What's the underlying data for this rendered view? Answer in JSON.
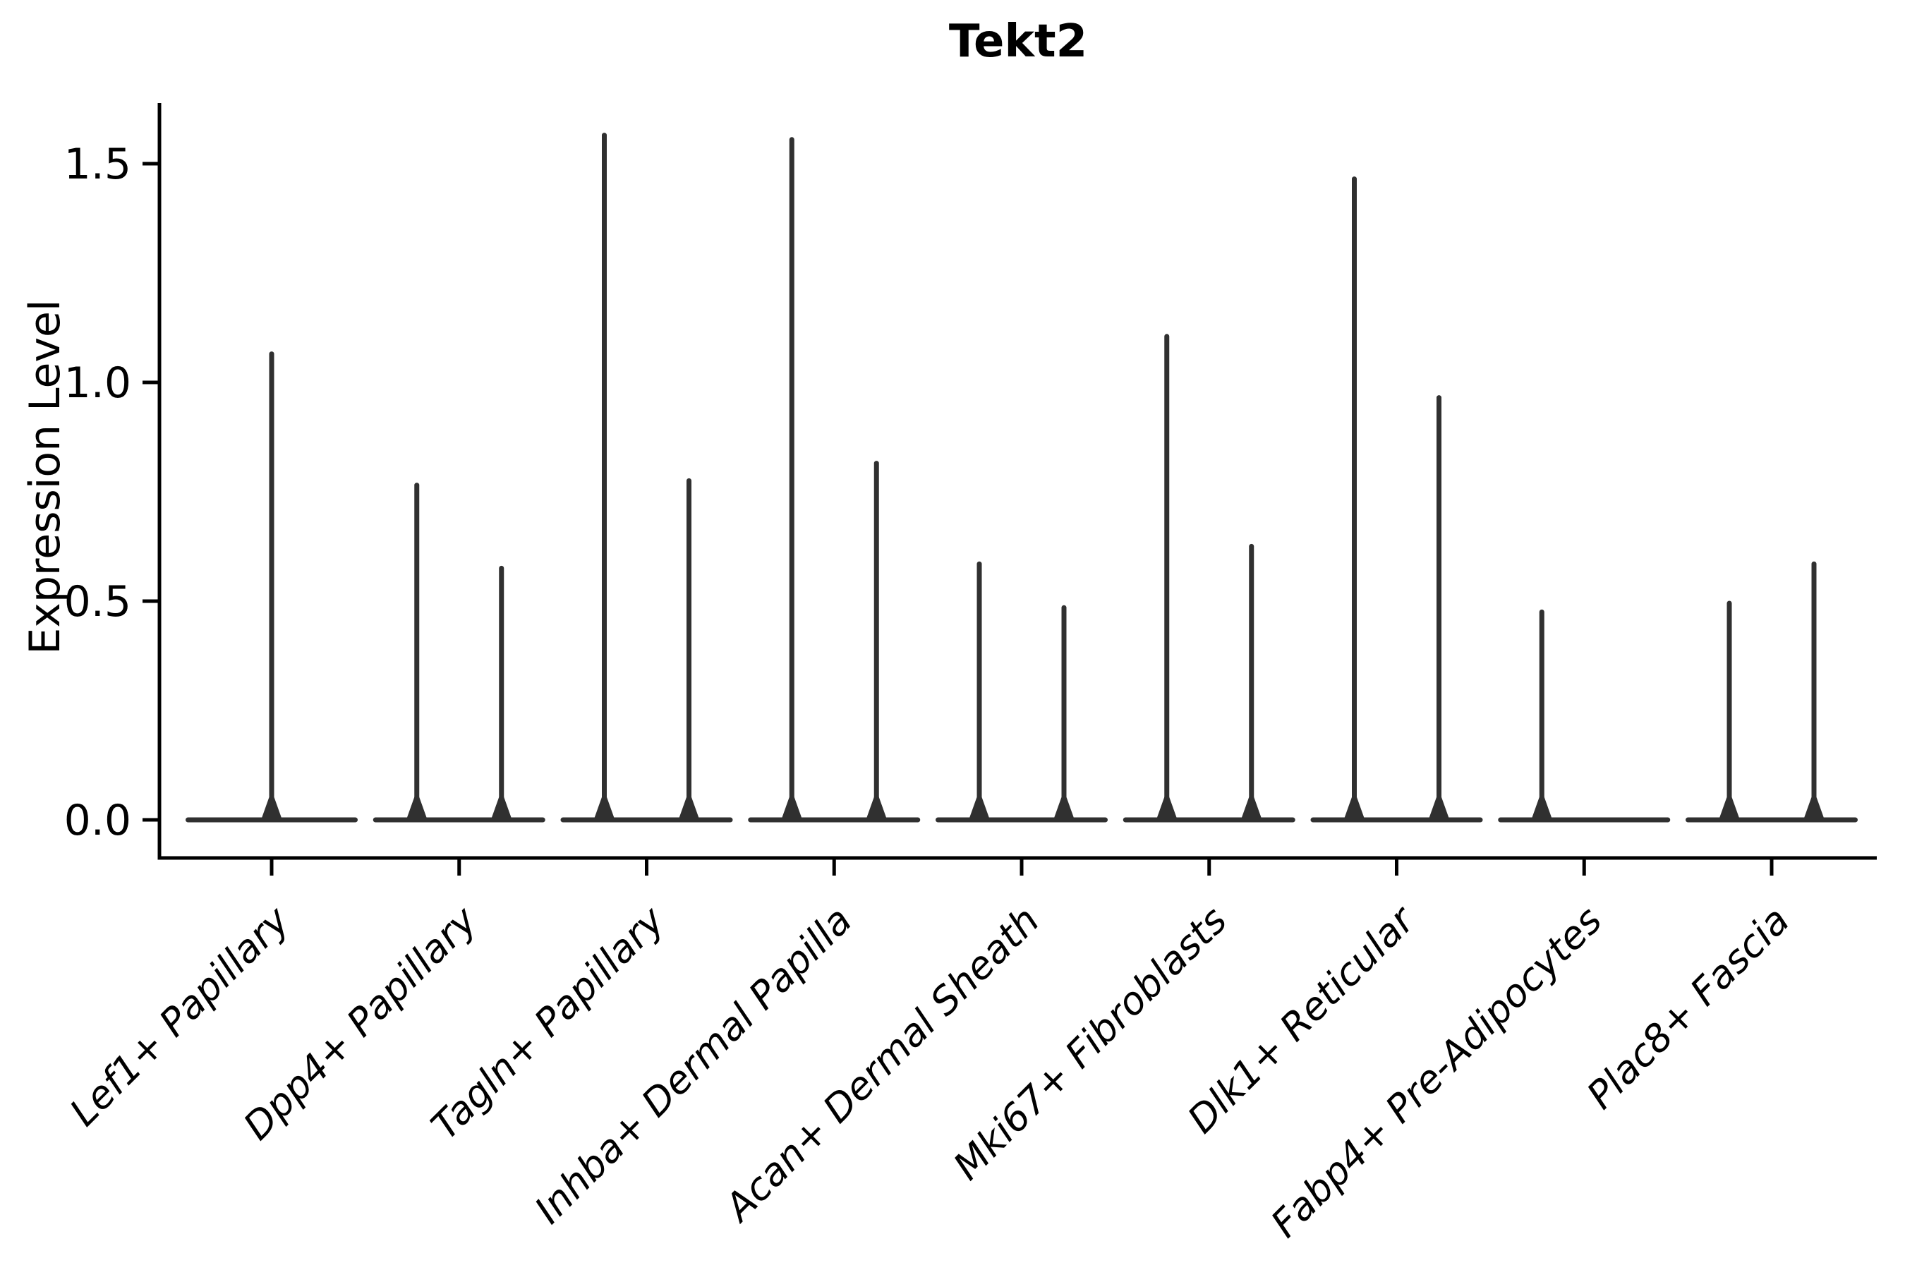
{
  "chart_data": {
    "type": "violin",
    "title": "Tekt2",
    "ylabel": "Expression Level",
    "xlabel": "",
    "grid": false,
    "legend": "none",
    "ylim": [
      -0.09,
      1.64
    ],
    "yticks": [
      {
        "label": "0.0",
        "value": 0.0
      },
      {
        "label": "0.5",
        "value": 0.5
      },
      {
        "label": "1.0",
        "value": 1.0
      },
      {
        "label": "1.5",
        "value": 1.5
      }
    ],
    "categories": [
      "Lef1+ Papillary",
      "Dpp4+ Papillary",
      "Tagln+ Papillary",
      "Inhba+ Dermal Papilla",
      "Acan+ Dermal Sheath",
      "Mki67+ Fibroblasts",
      "Dlk1+ Reticular",
      "Fabp4+ Pre-Adipocytes",
      "Plac8+ Fascia"
    ],
    "violins": [
      {
        "category": "Lef1+ Papillary",
        "spikes": [
          {
            "slot": "center",
            "max": 1.07
          }
        ]
      },
      {
        "category": "Dpp4+ Papillary",
        "spikes": [
          {
            "slot": "left",
            "max": 0.77
          },
          {
            "slot": "right",
            "max": 0.58
          }
        ]
      },
      {
        "category": "Tagln+ Papillary",
        "spikes": [
          {
            "slot": "left",
            "max": 1.57
          },
          {
            "slot": "right",
            "max": 0.78
          }
        ]
      },
      {
        "category": "Inhba+ Dermal Papilla",
        "spikes": [
          {
            "slot": "left",
            "max": 1.56
          },
          {
            "slot": "right",
            "max": 0.82
          }
        ]
      },
      {
        "category": "Acan+ Dermal Sheath",
        "spikes": [
          {
            "slot": "left",
            "max": 0.59
          },
          {
            "slot": "right",
            "max": 0.49
          }
        ]
      },
      {
        "category": "Mki67+ Fibroblasts",
        "spikes": [
          {
            "slot": "left",
            "max": 1.11
          },
          {
            "slot": "right",
            "max": 0.63
          }
        ]
      },
      {
        "category": "Dlk1+ Reticular",
        "spikes": [
          {
            "slot": "left",
            "max": 1.47
          },
          {
            "slot": "right",
            "max": 0.97
          }
        ]
      },
      {
        "category": "Fabp4+ Pre-Adipocytes",
        "spikes": [
          {
            "slot": "left",
            "max": 0.48
          }
        ]
      },
      {
        "category": "Plac8+ Fascia",
        "spikes": [
          {
            "slot": "left",
            "max": 0.5
          },
          {
            "slot": "right",
            "max": 0.59
          }
        ]
      }
    ],
    "colors": {
      "violin": "#303030",
      "axis": "#000000",
      "text": "#000000"
    }
  }
}
